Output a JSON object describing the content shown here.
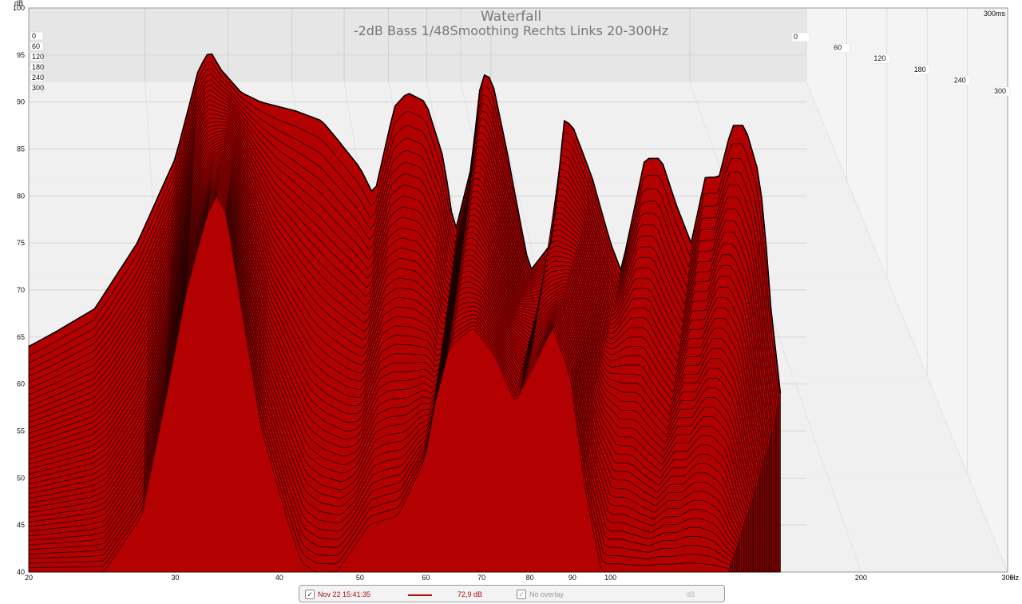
{
  "chart_data": {
    "type": "area",
    "title": "Waterfall",
    "subtitle": "-2dB Bass 1/48Smoothing Rechts Links 20-300Hz",
    "ylabel": "dB",
    "xlabel_unit": "Hz",
    "depth_label": "300ms",
    "ylim": [
      40,
      100
    ],
    "xlim": [
      20,
      300
    ],
    "x_scale": "log",
    "y_ticks": [
      40,
      45,
      50,
      55,
      60,
      65,
      70,
      75,
      80,
      85,
      90,
      95,
      100
    ],
    "x_ticks": [
      20,
      30,
      40,
      50,
      60,
      70,
      80,
      90,
      100,
      200,
      300
    ],
    "z_ticks_left": [
      "0",
      "60",
      "120",
      "180",
      "240",
      "300"
    ],
    "z_ticks_right": [
      "0",
      "60",
      "120",
      "180",
      "240",
      "300"
    ],
    "grid": true,
    "fill_color": "#b30000",
    "outline_color": "#1a0000",
    "wall_color": "#e6e6e6",
    "back_series_x": [
      20,
      21.5,
      24,
      27,
      30,
      32,
      33,
      34,
      36,
      38,
      40,
      42,
      45,
      47,
      50,
      52,
      55,
      57,
      60,
      63,
      65,
      68,
      70,
      72,
      75,
      78,
      80,
      85,
      88,
      90,
      95,
      100,
      103,
      110,
      115,
      120,
      125,
      130,
      135,
      140,
      145,
      150,
      153,
      155,
      160
    ],
    "back_series_y": [
      64,
      65.5,
      68,
      75,
      84,
      93.5,
      95.5,
      93.5,
      91,
      90,
      89.5,
      89,
      88,
      86,
      83,
      80,
      89.5,
      91,
      90,
      84,
      76,
      83,
      93,
      92.5,
      85,
      77,
      72,
      75,
      88,
      87.5,
      82,
      75,
      72,
      84,
      84,
      79,
      75,
      82,
      82,
      87.5,
      87.5,
      83,
      78,
      70,
      59
    ],
    "front_series_x": [
      20,
      25,
      28,
      30,
      32,
      34,
      35,
      36,
      38,
      40,
      43,
      45,
      47,
      50,
      55,
      60,
      65,
      67,
      70,
      75,
      80,
      85,
      90,
      95,
      100,
      105,
      110
    ],
    "front_series_y": [
      40,
      40,
      46,
      58,
      70,
      78,
      80,
      78,
      66,
      55,
      46,
      41,
      40,
      40,
      45,
      46,
      52,
      58,
      64,
      66,
      63,
      58,
      62,
      66,
      61,
      48,
      40
    ],
    "slice_count": 44
  },
  "legend": {
    "entry_checked": "✓",
    "timestamp": "Nov 22 15:41:35",
    "line_color": "#aa1111",
    "level": "72,9 dB",
    "overlay_checked": "✓",
    "overlay_label": "No overlay",
    "unit": "dB"
  }
}
